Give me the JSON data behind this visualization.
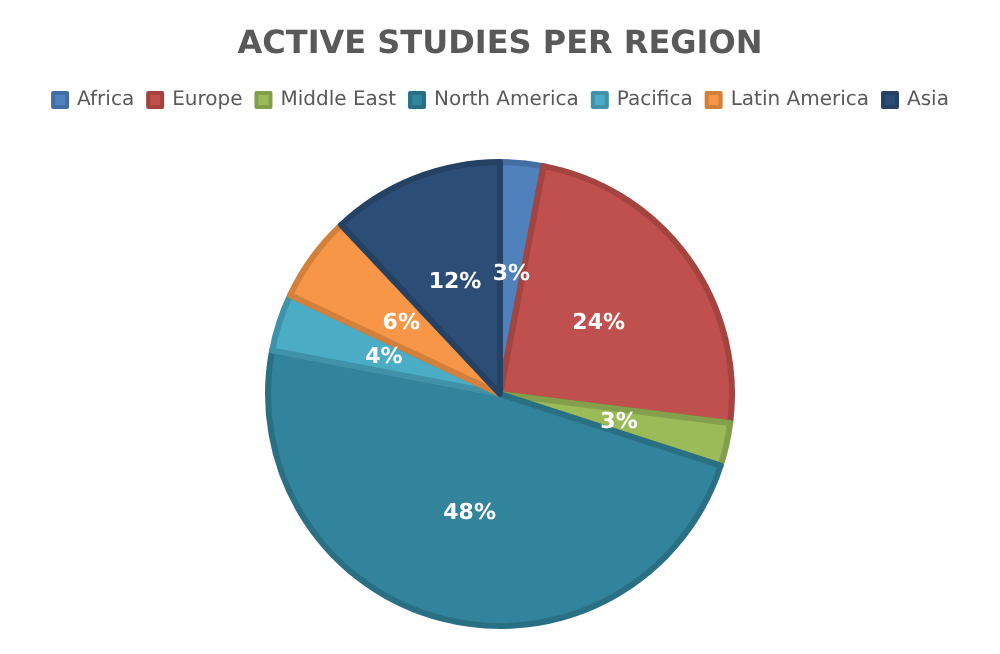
{
  "chart_data": {
    "type": "pie",
    "title": "ACTIVE STUDIES PER REGION",
    "categories": [
      "Africa",
      "Europe",
      "Middle East",
      "North America",
      "Pacifica",
      "Latin America",
      "Asia"
    ],
    "values": [
      3,
      24,
      3,
      48,
      4,
      6,
      12
    ],
    "value_labels": [
      "3%",
      "24%",
      "3%",
      "48%",
      "4%",
      "6%",
      "12%"
    ],
    "colors": [
      "#4f81bd",
      "#c0504d",
      "#9bbb59",
      "#31849b",
      "#4bacc6",
      "#f79646",
      "#2c4d75"
    ],
    "legend": "top"
  }
}
